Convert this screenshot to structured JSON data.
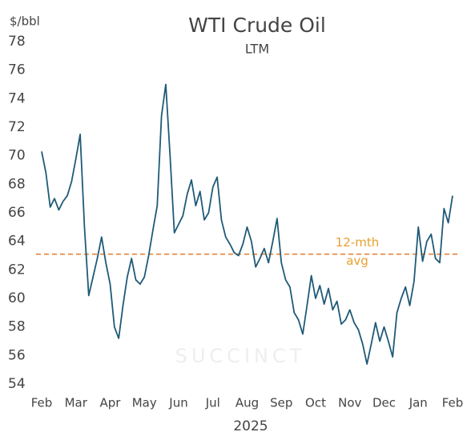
{
  "chart_data": {
    "type": "line",
    "title": "WTI Crude Oil",
    "subtitle": "LTM",
    "y_label": "$/bbl",
    "x_label": "2025",
    "watermark": "SUCCINCT",
    "categories": [
      "Feb",
      null,
      null,
      null,
      null,
      null,
      null,
      null,
      "Mar",
      null,
      null,
      null,
      null,
      null,
      null,
      null,
      "Apr",
      null,
      null,
      null,
      null,
      null,
      null,
      null,
      "May",
      null,
      null,
      null,
      null,
      null,
      null,
      null,
      "Jun",
      null,
      null,
      null,
      null,
      null,
      null,
      null,
      "Jul",
      null,
      null,
      null,
      null,
      null,
      null,
      null,
      "Aug",
      null,
      null,
      null,
      null,
      null,
      null,
      null,
      "Sep",
      null,
      null,
      null,
      null,
      null,
      null,
      null,
      "Oct",
      null,
      null,
      null,
      null,
      null,
      null,
      null,
      "Nov",
      null,
      null,
      null,
      null,
      null,
      null,
      null,
      "Dec",
      null,
      null,
      null,
      null,
      null,
      null,
      null,
      "Jan",
      null,
      null,
      null,
      null,
      null,
      null,
      null,
      "Feb"
    ],
    "series": [
      {
        "name": "WTI",
        "color": "#1f5a78",
        "values": [
          70.3,
          68.8,
          66.4,
          67.0,
          66.2,
          66.8,
          67.2,
          68.2,
          69.8,
          71.5,
          65.0,
          60.2,
          61.5,
          62.8,
          64.3,
          62.5,
          61.0,
          58.0,
          57.2,
          59.5,
          61.5,
          62.8,
          61.3,
          61.0,
          61.5,
          63.0,
          64.8,
          66.5,
          72.8,
          75.0,
          70.0,
          64.6,
          65.2,
          65.8,
          67.3,
          68.3,
          66.5,
          67.5,
          65.5,
          66.0,
          67.8,
          68.5,
          65.5,
          64.3,
          63.8,
          63.2,
          63.0,
          63.8,
          65.0,
          64.0,
          62.2,
          62.8,
          63.5,
          62.5,
          64.0,
          65.6,
          62.5,
          61.3,
          60.8,
          59.0,
          58.5,
          57.5,
          59.5,
          61.6,
          60.0,
          60.9,
          59.6,
          60.7,
          59.2,
          59.8,
          58.2,
          58.5,
          59.2,
          58.3,
          57.8,
          56.8,
          55.4,
          56.8,
          58.3,
          57.0,
          58.0,
          57.0,
          55.9,
          59.0,
          60.0,
          60.8,
          59.5,
          61.2,
          65.0,
          62.6,
          64.0,
          64.5,
          62.8,
          62.5,
          66.3,
          65.3,
          67.2
        ]
      }
    ],
    "reference_line": {
      "value": 63.1,
      "label": [
        "12-mth",
        "avg"
      ],
      "color": "#e8803a",
      "label_color": "#e8a030"
    },
    "ylim": [
      54,
      78
    ],
    "yticks": [
      54,
      56,
      58,
      60,
      62,
      64,
      66,
      68,
      70,
      72,
      74,
      76,
      78
    ],
    "grid": false
  }
}
